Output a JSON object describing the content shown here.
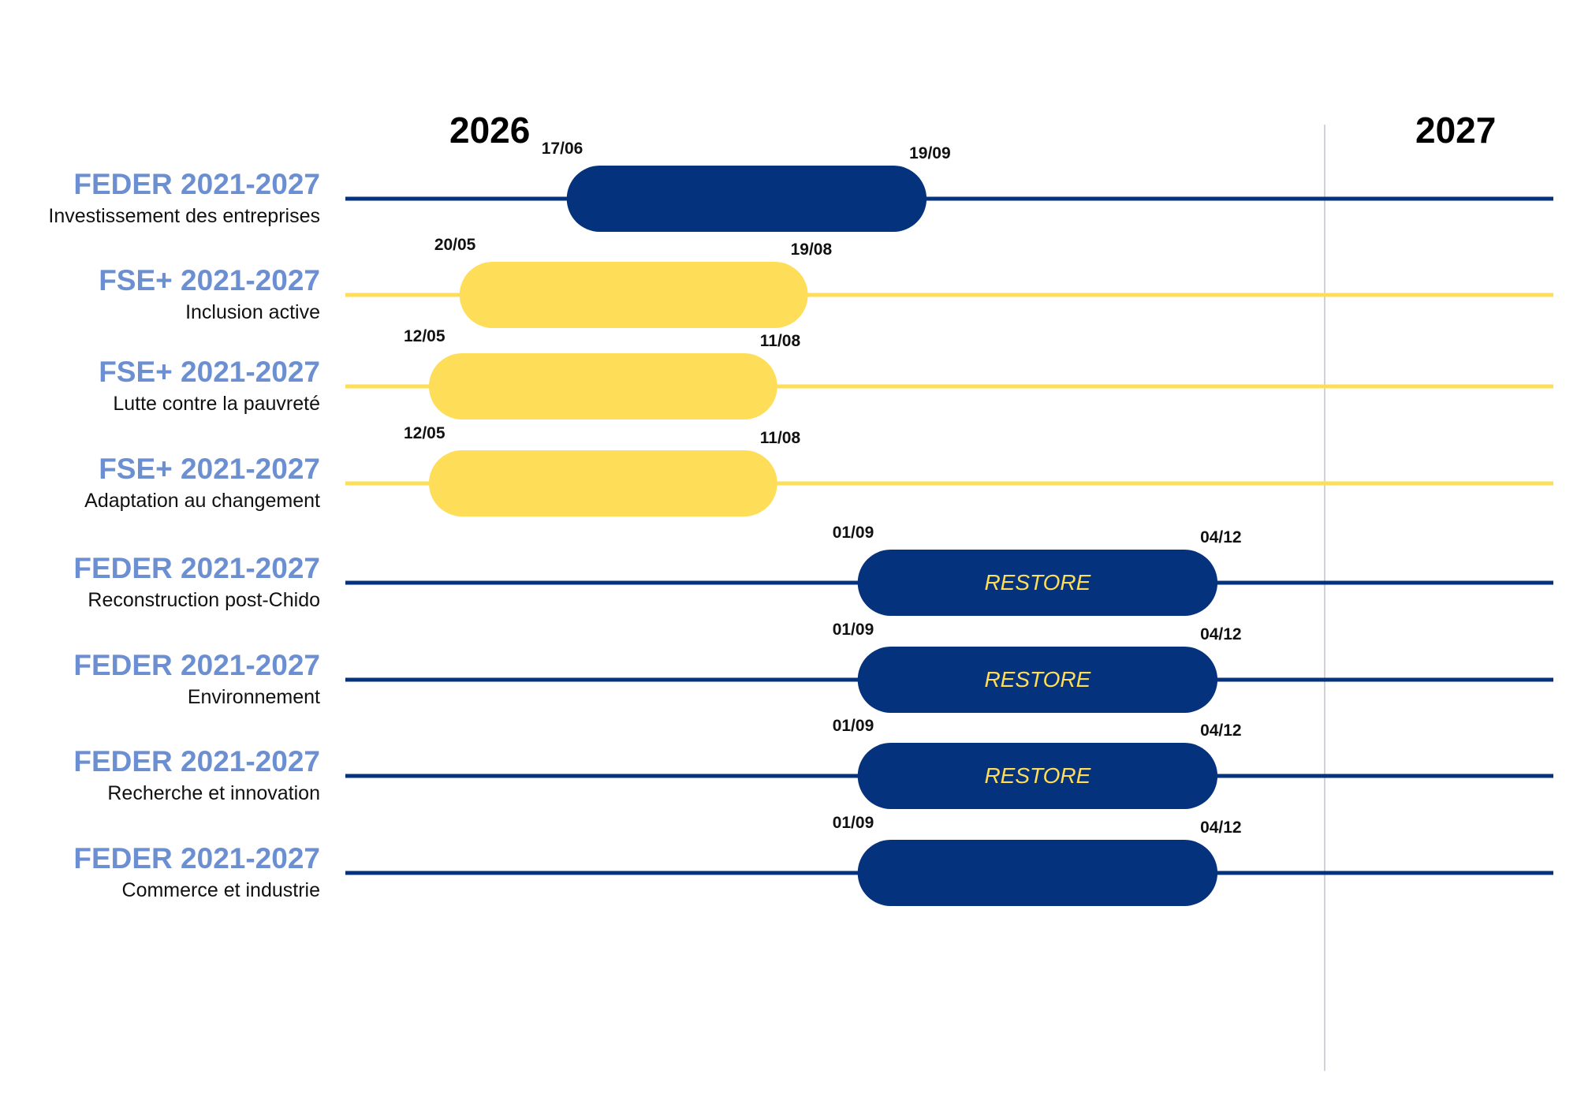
{
  "colors": {
    "feder": "#04327c",
    "fse": "#fedd59",
    "title": "#6c8fd2",
    "label_on_bar": "#fedd59",
    "divider": "#cfd3d8"
  },
  "chart_data": {
    "type": "gantt",
    "years": [
      "2026",
      "2027"
    ],
    "x_axis": {
      "unit": "date",
      "range": [
        "2026-01-01",
        "2027-03-01"
      ],
      "year_boundary": "2027-01-01"
    },
    "rows": [
      {
        "title": "FEDER 2021-2027",
        "subtitle": "Investissement des entreprises",
        "fund": "feder",
        "start": "2026-06-17",
        "end": "2026-09-19",
        "start_label": "17/06",
        "end_label": "19/09",
        "bar_label": ""
      },
      {
        "title": "FSE+ 2021-2027",
        "subtitle": "Inclusion active",
        "fund": "fse",
        "start": "2026-05-20",
        "end": "2026-08-19",
        "start_label": "20/05",
        "end_label": "19/08",
        "bar_label": ""
      },
      {
        "title": "FSE+ 2021-2027",
        "subtitle": "Lutte contre la pauvreté",
        "fund": "fse",
        "start": "2026-05-12",
        "end": "2026-08-11",
        "start_label": "12/05",
        "end_label": "11/08",
        "bar_label": ""
      },
      {
        "title": "FSE+ 2021-2027",
        "subtitle": "Adaptation au changement",
        "fund": "fse",
        "start": "2026-05-12",
        "end": "2026-08-11",
        "start_label": "12/05",
        "end_label": "11/08",
        "bar_label": ""
      },
      {
        "title": "FEDER 2021-2027",
        "subtitle": "Reconstruction post-Chido",
        "fund": "feder",
        "start": "2026-09-01",
        "end": "2026-12-04",
        "start_label": "01/09",
        "end_label": "04/12",
        "bar_label": "RESTORE"
      },
      {
        "title": "FEDER 2021-2027",
        "subtitle": "Environnement",
        "fund": "feder",
        "start": "2026-09-01",
        "end": "2026-12-04",
        "start_label": "01/09",
        "end_label": "04/12",
        "bar_label": "RESTORE"
      },
      {
        "title": "FEDER 2021-2027",
        "subtitle": "Recherche et innovation",
        "fund": "feder",
        "start": "2026-09-01",
        "end": "2026-12-04",
        "start_label": "01/09",
        "end_label": "04/12",
        "bar_label": "RESTORE"
      },
      {
        "title": "FEDER 2021-2027",
        "subtitle": "Commerce et industrie",
        "fund": "feder",
        "start": "2026-09-01",
        "end": "2026-12-04",
        "start_label": "01/09",
        "end_label": "04/12",
        "bar_label": ""
      }
    ]
  }
}
